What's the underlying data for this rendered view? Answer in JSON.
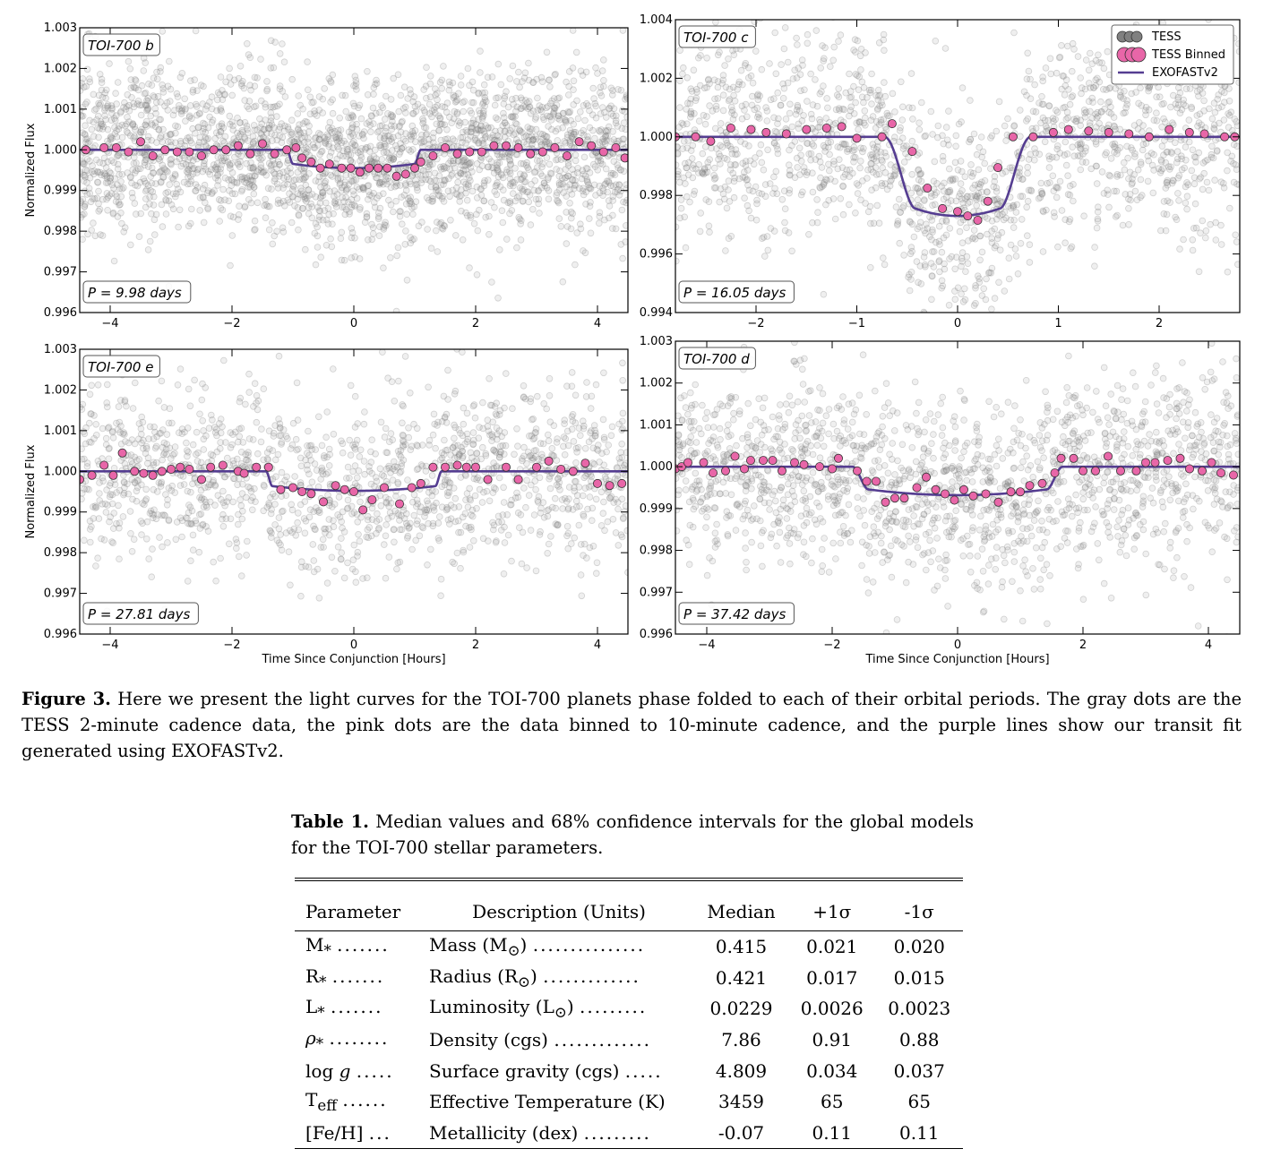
{
  "figure": {
    "xlabel": "Time Since Conjunction [Hours]",
    "ylabel": "Normalized Flux",
    "legend": [
      {
        "label": "TESS",
        "color": "#808080"
      },
      {
        "label": "TESS Binned",
        "color": "#e866a8"
      },
      {
        "label": "EXOFASTv2",
        "color": "#553d91"
      }
    ],
    "colors": {
      "raw": "#808080",
      "binned": "#e866a8",
      "binned_edge": "#333333",
      "model": "#553d91"
    }
  },
  "chart_data": [
    {
      "type": "scatter",
      "panel": "TOI-700 b",
      "label": "TOI-700 b",
      "period_label": "P = 9.98 days",
      "xlim": [
        -4.5,
        4.5
      ],
      "ylim": [
        0.996,
        1.003
      ],
      "xticks": [
        -4,
        -2,
        0,
        2,
        4
      ],
      "yticks": [
        0.996,
        0.997,
        0.998,
        0.999,
        1.0,
        1.001,
        1.002,
        1.003
      ],
      "transit": {
        "depth": 0.00045,
        "t14": 2.2,
        "ingress": 0.1
      },
      "raw_scatter": 0.001,
      "binned": {
        "x": [
          -4.4,
          -4.1,
          -3.9,
          -3.7,
          -3.5,
          -3.3,
          -3.1,
          -2.9,
          -2.7,
          -2.5,
          -2.3,
          -2.1,
          -1.9,
          -1.7,
          -1.5,
          -1.3,
          -1.1,
          -0.95,
          -0.85,
          -0.7,
          -0.55,
          -0.4,
          -0.2,
          -0.05,
          0.1,
          0.25,
          0.4,
          0.55,
          0.7,
          0.85,
          1.0,
          1.1,
          1.3,
          1.5,
          1.7,
          1.9,
          2.1,
          2.3,
          2.5,
          2.7,
          2.9,
          3.1,
          3.3,
          3.5,
          3.7,
          3.9,
          4.1,
          4.3,
          4.45
        ],
        "y": [
          1.0,
          1.00005,
          1.00005,
          0.99995,
          1.0002,
          0.99985,
          1.0,
          0.99995,
          0.99995,
          0.99985,
          1.0,
          1.0,
          1.0001,
          0.9999,
          1.00015,
          0.9999,
          1.0,
          1.00005,
          0.9998,
          0.9997,
          0.99955,
          0.99965,
          0.99955,
          0.99955,
          0.99945,
          0.99955,
          0.99955,
          0.99955,
          0.99935,
          0.9994,
          0.99955,
          0.9997,
          0.99985,
          1.00005,
          0.9999,
          0.99995,
          0.99995,
          1.0001,
          1.0001,
          1.00005,
          0.9999,
          0.99995,
          1.00005,
          0.99985,
          1.0002,
          1.0001,
          0.99995,
          1.00005,
          0.9998
        ]
      }
    },
    {
      "type": "scatter",
      "panel": "TOI-700 c",
      "label": "TOI-700 c",
      "period_label": "P = 16.05 days",
      "xlim": [
        -2.8,
        2.8
      ],
      "ylim": [
        0.994,
        1.004
      ],
      "xticks": [
        -2,
        -1,
        0,
        1,
        2
      ],
      "yticks": [
        0.994,
        0.996,
        0.998,
        1.0,
        1.002,
        1.004
      ],
      "transit": {
        "depth": 0.0027,
        "t14": 1.45,
        "ingress": 0.3
      },
      "raw_scatter": 0.00175,
      "binned": {
        "x": [
          -2.8,
          -2.6,
          -2.45,
          -2.25,
          -2.05,
          -1.9,
          -1.7,
          -1.5,
          -1.3,
          -1.15,
          -1.0,
          -0.75,
          -0.65,
          -0.45,
          -0.3,
          -0.15,
          0.0,
          0.1,
          0.2,
          0.3,
          0.4,
          0.55,
          0.75,
          0.95,
          1.1,
          1.3,
          1.5,
          1.7,
          1.9,
          2.1,
          2.3,
          2.45,
          2.65,
          2.75
        ],
        "y": [
          1.0,
          1.0,
          0.99985,
          1.0003,
          1.00025,
          1.00015,
          1.0001,
          1.00025,
          1.0003,
          1.00035,
          0.99995,
          1.0,
          1.00045,
          0.9995,
          0.99825,
          0.99755,
          0.99745,
          0.9973,
          0.99715,
          0.9978,
          0.99895,
          1.0,
          1.0,
          1.00015,
          1.00025,
          1.0002,
          1.00015,
          1.0001,
          1.0,
          1.00025,
          1.00015,
          1.0001,
          1.0,
          1.0
        ]
      }
    },
    {
      "type": "scatter",
      "panel": "TOI-700 e",
      "label": "TOI-700 e",
      "period_label": "P = 27.81 days",
      "xlim": [
        -4.5,
        4.5
      ],
      "ylim": [
        0.996,
        1.003
      ],
      "xticks": [
        -4,
        -2,
        0,
        2,
        4
      ],
      "yticks": [
        0.996,
        0.997,
        0.998,
        0.999,
        1.0,
        1.001,
        1.002,
        1.003
      ],
      "transit": {
        "depth": 0.00048,
        "t14": 2.88,
        "ingress": 0.1
      },
      "raw_scatter": 0.0011,
      "binned": {
        "x": [
          -4.5,
          -4.3,
          -4.1,
          -3.95,
          -3.8,
          -3.6,
          -3.45,
          -3.3,
          -3.15,
          -3.0,
          -2.85,
          -2.7,
          -2.5,
          -2.35,
          -2.15,
          -1.9,
          -1.8,
          -1.6,
          -1.4,
          -1.2,
          -1.0,
          -0.85,
          -0.7,
          -0.5,
          -0.3,
          -0.15,
          0.0,
          0.15,
          0.3,
          0.5,
          0.75,
          0.95,
          1.1,
          1.3,
          1.5,
          1.7,
          1.85,
          2.0,
          2.2,
          2.5,
          2.7,
          3.0,
          3.2,
          3.4,
          3.6,
          3.8,
          4.0,
          4.2,
          4.4
        ],
        "y": [
          0.9998,
          0.9999,
          1.00015,
          0.9999,
          1.00045,
          1.0,
          0.99995,
          0.9999,
          1.0,
          1.00005,
          1.0001,
          1.00005,
          0.9998,
          1.0001,
          1.00015,
          1.0,
          0.99995,
          1.0001,
          1.0001,
          0.99955,
          0.9996,
          0.9995,
          0.99945,
          0.99925,
          0.99965,
          0.99955,
          0.9995,
          0.99905,
          0.9993,
          0.9996,
          0.9992,
          0.9996,
          0.9997,
          1.0001,
          1.0001,
          1.00015,
          1.0001,
          1.0001,
          0.9998,
          1.0001,
          0.9998,
          1.0001,
          1.00025,
          1.00005,
          1.0,
          1.0002,
          0.9997,
          0.99965,
          0.9997
        ]
      }
    },
    {
      "type": "scatter",
      "panel": "TOI-700 d",
      "label": "TOI-700 d",
      "period_label": "P = 37.42 days",
      "xlim": [
        -4.5,
        4.5
      ],
      "ylim": [
        0.996,
        1.003
      ],
      "xticks": [
        -4,
        -2,
        0,
        2,
        4
      ],
      "yticks": [
        0.996,
        0.997,
        0.998,
        0.999,
        1.0,
        1.001,
        1.002,
        1.003
      ],
      "transit": {
        "depth": 0.00068,
        "t14": 3.35,
        "ingress": 0.25
      },
      "raw_scatter": 0.0011,
      "binned": {
        "x": [
          -4.5,
          -4.4,
          -4.3,
          -4.05,
          -3.9,
          -3.7,
          -3.55,
          -3.4,
          -3.3,
          -3.1,
          -2.95,
          -2.8,
          -2.6,
          -2.45,
          -2.2,
          -2.0,
          -1.9,
          -1.6,
          -1.45,
          -1.3,
          -1.15,
          -1.0,
          -0.85,
          -0.65,
          -0.5,
          -0.35,
          -0.2,
          -0.05,
          0.1,
          0.25,
          0.45,
          0.65,
          0.85,
          1.0,
          1.15,
          1.35,
          1.55,
          1.65,
          1.85,
          2.0,
          2.2,
          2.4,
          2.6,
          2.85,
          3.0,
          3.15,
          3.35,
          3.55,
          3.7,
          3.9,
          4.05,
          4.2,
          4.4
        ],
        "y": [
          0.99995,
          1.0,
          1.0001,
          1.0001,
          0.99985,
          0.9999,
          1.00025,
          0.99995,
          1.00015,
          1.00015,
          1.00015,
          0.9999,
          1.0001,
          1.00005,
          1.0,
          0.99995,
          1.0002,
          0.9999,
          0.99965,
          0.99965,
          0.99915,
          0.99925,
          0.99925,
          0.9995,
          0.99975,
          0.99945,
          0.99935,
          0.9992,
          0.99945,
          0.9993,
          0.99935,
          0.99915,
          0.9994,
          0.9994,
          0.99955,
          0.9996,
          0.99985,
          1.0002,
          1.0002,
          0.9999,
          0.9999,
          1.00025,
          0.9999,
          0.9999,
          1.0001,
          1.0001,
          1.00015,
          1.0002,
          0.99995,
          0.9999,
          1.0001,
          0.99985,
          0.9998
        ]
      }
    }
  ],
  "captions": {
    "figure_label": "Figure 3.",
    "figure_text": "Here we present the light curves for the TOI-700 planets phase folded to each of their orbital periods. The gray dots are the TESS 2-minute cadence data, the pink dots are the data binned to 10-minute cadence, and the purple lines show our transit fit generated using EXOFASTv2.",
    "table_label": "Table 1.",
    "table_text": "Median values and 68% confidence intervals for the global models for the TOI-700 stellar parameters."
  },
  "table": {
    "headers": [
      "Parameter",
      "Description (Units)",
      "Median",
      "+1σ",
      "-1σ"
    ],
    "rows": [
      {
        "sym": "M",
        "sub": "*",
        "dots1": ".......",
        "desc": "Mass (M",
        "desc_sub": "⊙",
        "desc_end": ")",
        "dots2": "...............",
        "median": "0.415",
        "plus": "0.021",
        "minus": "0.020"
      },
      {
        "sym": "R",
        "sub": "*",
        "dots1": ".......",
        "desc": "Radius (R",
        "desc_sub": "⊙",
        "desc_end": ")",
        "dots2": ".............",
        "median": "0.421",
        "plus": "0.017",
        "minus": "0.015"
      },
      {
        "sym": "L",
        "sub": "*",
        "dots1": ".......",
        "desc": "Luminosity (L",
        "desc_sub": "⊙",
        "desc_end": ")",
        "dots2": ".........",
        "median": "0.0229",
        "plus": "0.0026",
        "minus": "0.0023"
      },
      {
        "sym": "ρ",
        "sub": "*",
        "dots1": "........",
        "desc": "Density (cgs)",
        "desc_sub": "",
        "desc_end": "",
        "dots2": ".............",
        "median": "7.86",
        "plus": "0.91",
        "minus": "0.88"
      },
      {
        "sym": "log g",
        "sub": "",
        "dots1": ".....",
        "desc": "Surface gravity (cgs)",
        "desc_sub": "",
        "desc_end": "",
        "dots2": ".....",
        "median": "4.809",
        "plus": "0.034",
        "minus": "0.037"
      },
      {
        "sym": "T",
        "sub": "eff",
        "dots1": "......",
        "desc": "Effective Temperature (K)",
        "desc_sub": "",
        "desc_end": "",
        "dots2": "",
        "median": "3459",
        "plus": "65",
        "minus": "65"
      },
      {
        "sym": "[Fe/H]",
        "sub": "",
        "dots1": "...",
        "desc": "Metallicity (dex)",
        "desc_sub": "",
        "desc_end": "",
        "dots2": ".........",
        "median": "-0.07",
        "plus": "0.11",
        "minus": "0.11"
      }
    ]
  }
}
